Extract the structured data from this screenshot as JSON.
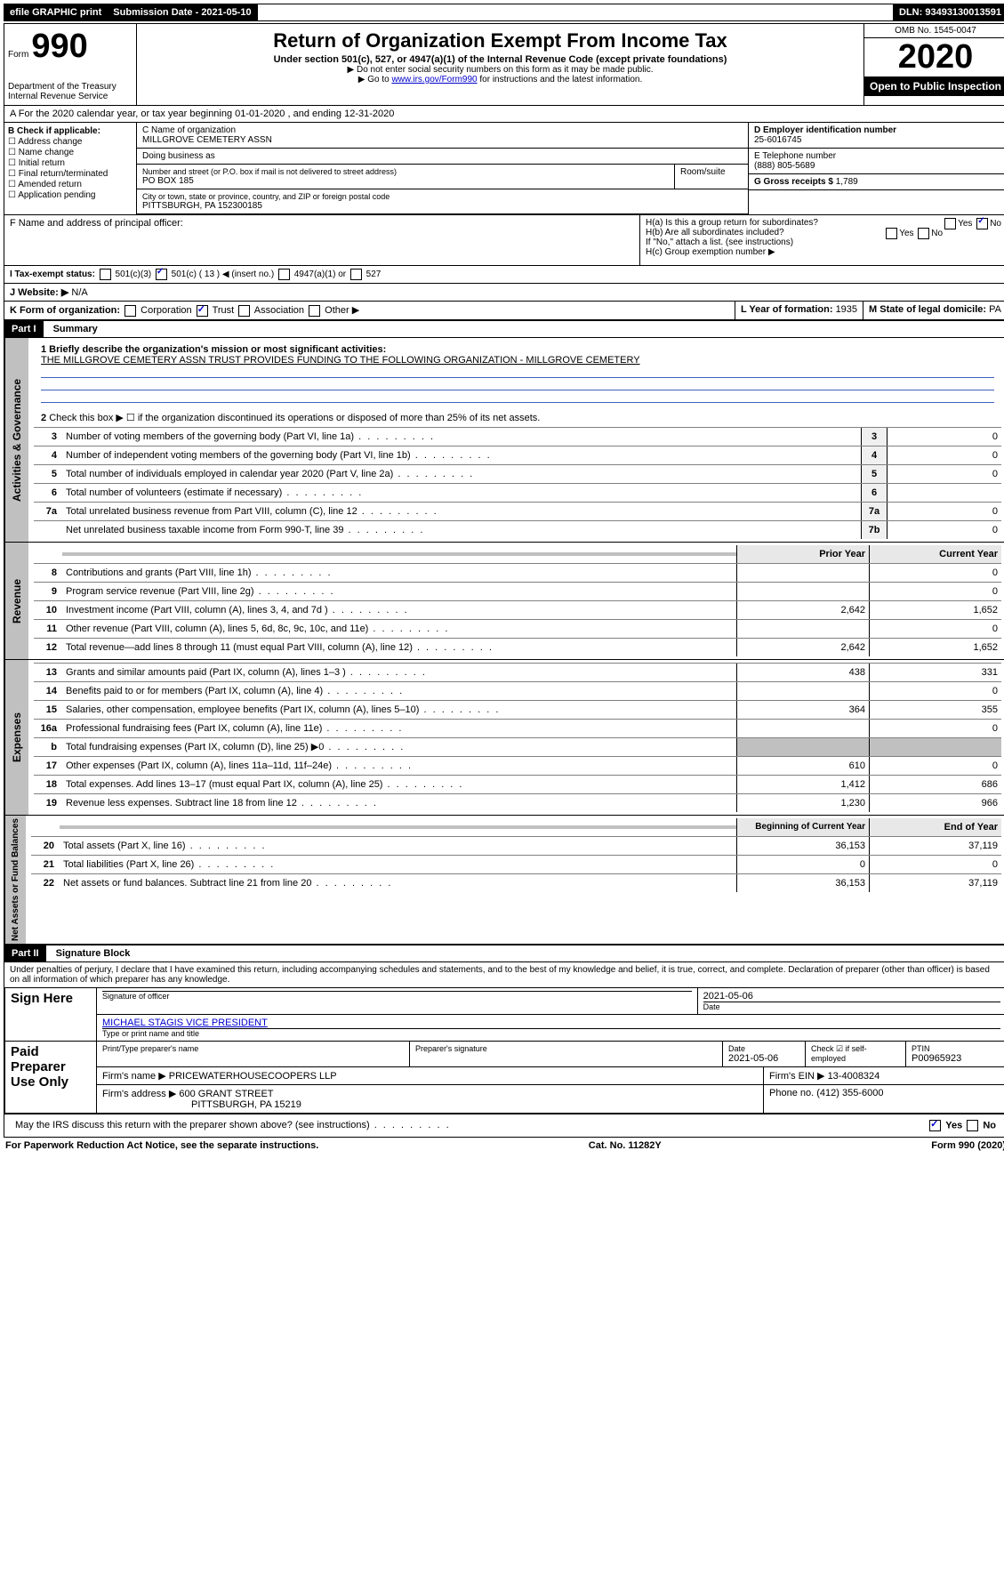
{
  "topbar": {
    "efile": "efile GRAPHIC print",
    "submission": "Submission Date - 2021-05-10",
    "dln": "DLN: 93493130013591"
  },
  "header": {
    "form_label": "Form",
    "form_num": "990",
    "title": "Return of Organization Exempt From Income Tax",
    "subtitle": "Under section 501(c), 527, or 4947(a)(1) of the Internal Revenue Code (except private foundations)",
    "note1": "▶ Do not enter social security numbers on this form as it may be made public.",
    "note2_pre": "▶ Go to ",
    "note2_link": "www.irs.gov/Form990",
    "note2_post": " for instructions and the latest information.",
    "dept": "Department of the Treasury\nInternal Revenue Service",
    "omb": "OMB No. 1545-0047",
    "year": "2020",
    "open": "Open to Public Inspection"
  },
  "rowA": "A For the 2020 calendar year, or tax year beginning 01-01-2020    , and ending 12-31-2020",
  "boxB": {
    "title": "B Check if applicable:",
    "items": [
      "Address change",
      "Name change",
      "Initial return",
      "Final return/terminated",
      "Amended return",
      "Application pending"
    ]
  },
  "boxC": {
    "label": "C Name of organization",
    "name": "MILLGROVE CEMETERY ASSN",
    "dba": "Doing business as",
    "addr_label": "Number and street (or P.O. box if mail is not delivered to street address)",
    "room": "Room/suite",
    "addr": "PO BOX 185",
    "city_label": "City or town, state or province, country, and ZIP or foreign postal code",
    "city": "PITTSBURGH, PA  152300185"
  },
  "boxD": {
    "label": "D Employer identification number",
    "val": "25-6016745"
  },
  "boxE": {
    "label": "E Telephone number",
    "val": "(888) 805-5689"
  },
  "boxG": {
    "label": "G Gross receipts $",
    "val": "1,789"
  },
  "boxF": "F  Name and address of principal officer:",
  "boxH": {
    "a": "H(a)  Is this a group return for subordinates?",
    "b": "H(b)  Are all subordinates included?",
    "b_note": "If \"No,\" attach a list. (see instructions)",
    "c": "H(c)  Group exemption number ▶",
    "yes": "Yes",
    "no": "No"
  },
  "boxI": {
    "label": "I  Tax-exempt status:",
    "opts": [
      "501(c)(3)",
      "501(c) ( 13 ) ◀ (insert no.)",
      "4947(a)(1) or",
      "527"
    ]
  },
  "boxJ": {
    "label": "J  Website: ▶",
    "val": "N/A"
  },
  "boxK": "K Form of organization:",
  "boxK_opts": [
    "Corporation",
    "Trust",
    "Association",
    "Other ▶"
  ],
  "boxL": {
    "label": "L Year of formation:",
    "val": "1935"
  },
  "boxM": {
    "label": "M State of legal domicile:",
    "val": "PA"
  },
  "part1": {
    "hdr": "Part I",
    "title": "Summary",
    "line1": "1  Briefly describe the organization's mission or most significant activities:",
    "mission": "THE MILLGROVE CEMETERY ASSN TRUST PROVIDES FUNDING TO THE FOLLOWING ORGANIZATION - MILLGROVE CEMETERY",
    "line2": "Check this box ▶ ☐  if the organization discontinued its operations or disposed of more than 25% of its net assets.",
    "sideA": "Activities & Governance",
    "sideR": "Revenue",
    "sideE": "Expenses",
    "sideN": "Net Assets or Fund Balances",
    "prior": "Prior Year",
    "current": "Current Year",
    "begin": "Beginning of Current Year",
    "end": "End of Year"
  },
  "lines_gov": [
    {
      "n": "3",
      "d": "Number of voting members of the governing body (Part VI, line 1a)",
      "box": "3",
      "v": "0"
    },
    {
      "n": "4",
      "d": "Number of independent voting members of the governing body (Part VI, line 1b)",
      "box": "4",
      "v": "0"
    },
    {
      "n": "5",
      "d": "Total number of individuals employed in calendar year 2020 (Part V, line 2a)",
      "box": "5",
      "v": "0"
    },
    {
      "n": "6",
      "d": "Total number of volunteers (estimate if necessary)",
      "box": "6",
      "v": ""
    },
    {
      "n": "7a",
      "d": "Total unrelated business revenue from Part VIII, column (C), line 12",
      "box": "7a",
      "v": "0"
    },
    {
      "n": "",
      "d": "Net unrelated business taxable income from Form 990-T, line 39",
      "box": "7b",
      "v": "0"
    }
  ],
  "lines_rev": [
    {
      "n": "8",
      "d": "Contributions and grants (Part VIII, line 1h)",
      "p": "",
      "c": "0"
    },
    {
      "n": "9",
      "d": "Program service revenue (Part VIII, line 2g)",
      "p": "",
      "c": "0"
    },
    {
      "n": "10",
      "d": "Investment income (Part VIII, column (A), lines 3, 4, and 7d )",
      "p": "2,642",
      "c": "1,652"
    },
    {
      "n": "11",
      "d": "Other revenue (Part VIII, column (A), lines 5, 6d, 8c, 9c, 10c, and 11e)",
      "p": "",
      "c": "0"
    },
    {
      "n": "12",
      "d": "Total revenue—add lines 8 through 11 (must equal Part VIII, column (A), line 12)",
      "p": "2,642",
      "c": "1,652"
    }
  ],
  "lines_exp": [
    {
      "n": "13",
      "d": "Grants and similar amounts paid (Part IX, column (A), lines 1–3 )",
      "p": "438",
      "c": "331"
    },
    {
      "n": "14",
      "d": "Benefits paid to or for members (Part IX, column (A), line 4)",
      "p": "",
      "c": "0"
    },
    {
      "n": "15",
      "d": "Salaries, other compensation, employee benefits (Part IX, column (A), lines 5–10)",
      "p": "364",
      "c": "355"
    },
    {
      "n": "16a",
      "d": "Professional fundraising fees (Part IX, column (A), line 11e)",
      "p": "",
      "c": "0"
    },
    {
      "n": "b",
      "d": "Total fundraising expenses (Part IX, column (D), line 25) ▶0",
      "p": "gray",
      "c": "gray"
    },
    {
      "n": "17",
      "d": "Other expenses (Part IX, column (A), lines 11a–11d, 11f–24e)",
      "p": "610",
      "c": "0"
    },
    {
      "n": "18",
      "d": "Total expenses. Add lines 13–17 (must equal Part IX, column (A), line 25)",
      "p": "1,412",
      "c": "686"
    },
    {
      "n": "19",
      "d": "Revenue less expenses. Subtract line 18 from line 12",
      "p": "1,230",
      "c": "966"
    }
  ],
  "lines_net": [
    {
      "n": "20",
      "d": "Total assets (Part X, line 16)",
      "p": "36,153",
      "c": "37,119"
    },
    {
      "n": "21",
      "d": "Total liabilities (Part X, line 26)",
      "p": "0",
      "c": "0"
    },
    {
      "n": "22",
      "d": "Net assets or fund balances. Subtract line 21 from line 20",
      "p": "36,153",
      "c": "37,119"
    }
  ],
  "part2": {
    "hdr": "Part II",
    "title": "Signature Block",
    "decl": "Under penalties of perjury, I declare that I have examined this return, including accompanying schedules and statements, and to the best of my knowledge and belief, it is true, correct, and complete. Declaration of preparer (other than officer) is based on all information of which preparer has any knowledge."
  },
  "sign": {
    "here": "Sign Here",
    "sig": "Signature of officer",
    "date": "2021-05-06",
    "date_lbl": "Date",
    "officer": "MICHAEL STAGIS  VICE PRESIDENT",
    "type_lbl": "Type or print name and title"
  },
  "paid": {
    "label": "Paid Preparer Use Only",
    "h1": "Print/Type preparer's name",
    "h2": "Preparer's signature",
    "h3": "Date",
    "h3v": "2021-05-06",
    "h4": "Check ☑ if self-employed",
    "h5": "PTIN",
    "h5v": "P00965923",
    "firm_lbl": "Firm's name      ▶",
    "firm": "PRICEWATERHOUSECOOPERS LLP",
    "ein_lbl": "Firm's EIN ▶",
    "ein": "13-4008324",
    "addr_lbl": "Firm's address ▶",
    "addr": "600 GRANT STREET",
    "addr2": "PITTSBURGH, PA  15219",
    "phone_lbl": "Phone no.",
    "phone": "(412) 355-6000"
  },
  "discuss": "May the IRS discuss this return with the preparer shown above? (see instructions)",
  "footer": {
    "left": "For Paperwork Reduction Act Notice, see the separate instructions.",
    "mid": "Cat. No. 11282Y",
    "right": "Form 990 (2020)"
  }
}
